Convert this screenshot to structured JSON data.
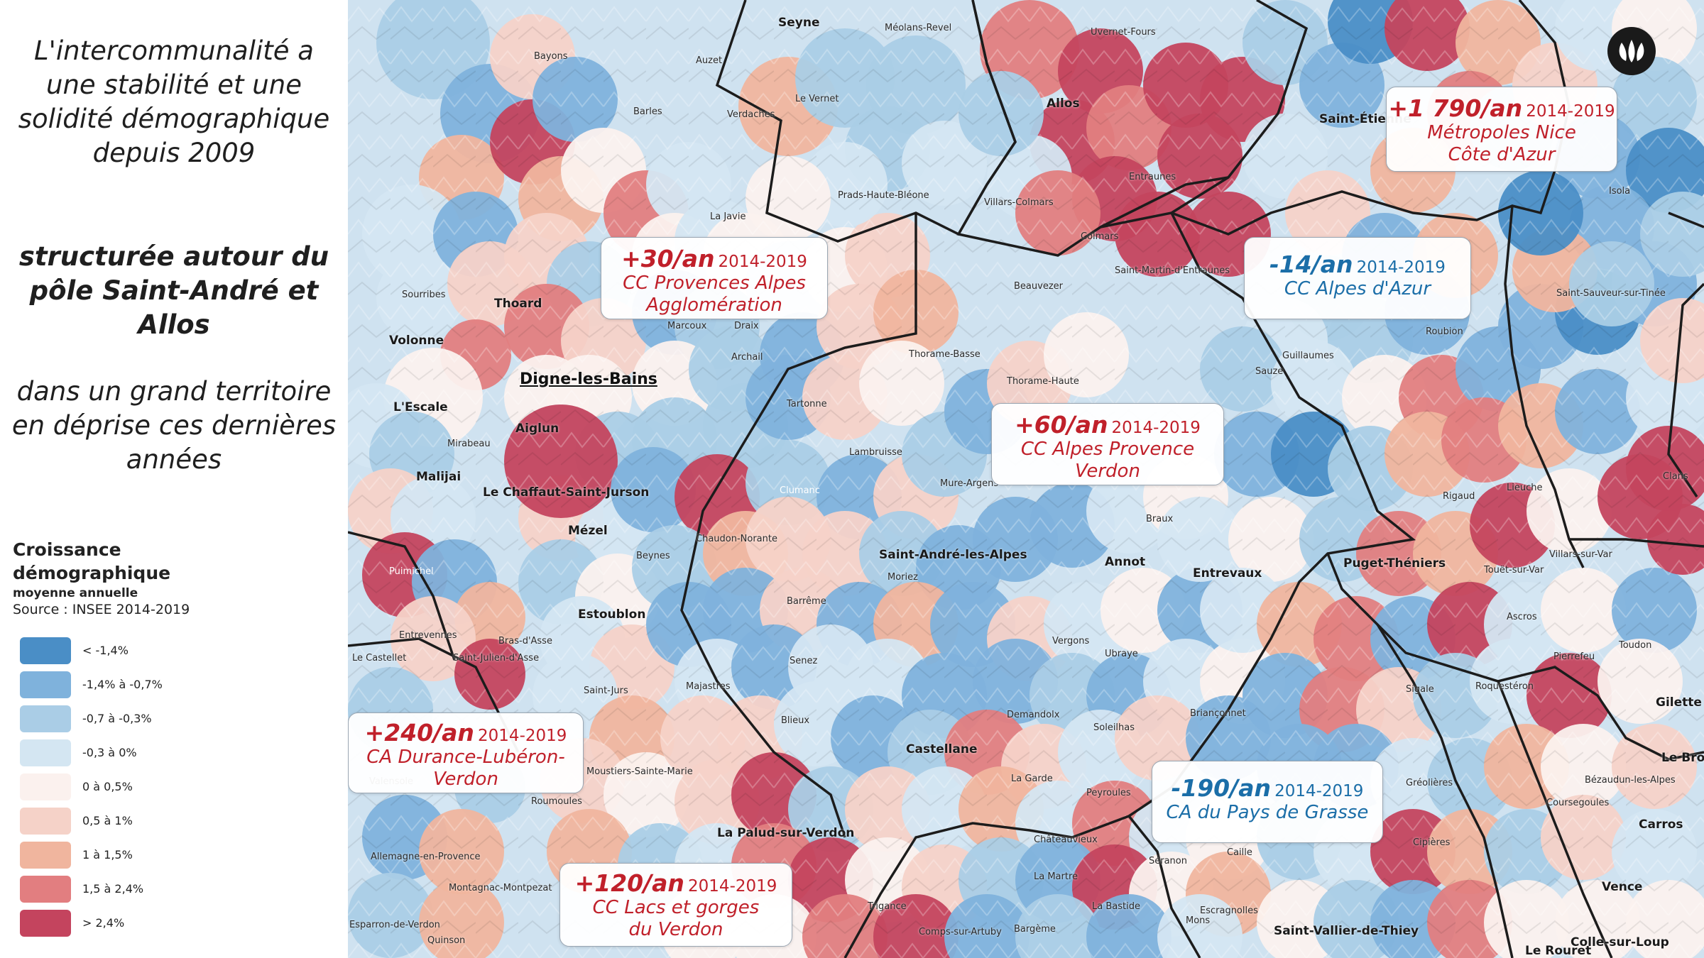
{
  "intro": {
    "line1": "L'intercommunalité a une stabilité et une solidité démographique depuis 2009",
    "line2": "structurée autour du pôle Saint-André et Allos",
    "line3": "dans un grand territoire en déprise ces dernières années"
  },
  "legend": {
    "title": "Croissance démographique",
    "subtitle": "moyenne annuelle",
    "source": "Source : INSEE 2014-2019",
    "items": [
      {
        "label": "< -1,4%",
        "color": "#4a8ec6"
      },
      {
        "label": "-1,4% à -0,7%",
        "color": "#7fb2dc"
      },
      {
        "label": "-0,7 à -0,3%",
        "color": "#aacde6"
      },
      {
        "label": "-0,3 à 0%",
        "color": "#d4e6f2"
      },
      {
        "label": "0 à 0,5%",
        "color": "#fbf1ee"
      },
      {
        "label": "0,5 à 1%",
        "color": "#f5d2c8"
      },
      {
        "label": "1 à 1,5%",
        "color": "#f0b59e"
      },
      {
        "label": "1,5 à 2,4%",
        "color": "#e27e80"
      },
      {
        "label": "> 2,4%",
        "color": "#c4445e"
      }
    ]
  },
  "callouts": [
    {
      "value": "+30/an",
      "years": "2014-2019",
      "name": "CC Provences Alpes Agglomération",
      "tone": "red"
    },
    {
      "value": "+60/an",
      "years": "2014-2019",
      "name": "CC Alpes Provence Verdon",
      "tone": "red"
    },
    {
      "value": "-14/an",
      "years": "2014-2019",
      "name": "CC Alpes d'Azur",
      "tone": "blue"
    },
    {
      "value": "+1 790/an",
      "years": "2014-2019",
      "name": "Métropoles Nice Côte d'Azur",
      "tone": "red"
    },
    {
      "value": "+240/an",
      "years": "2014-2019",
      "name": "CA Durance-Lubéron-Verdon",
      "tone": "red"
    },
    {
      "value": "+120/an",
      "years": "2014-2019",
      "name": "CC Lacs et gorges du Verdon",
      "tone": "red"
    },
    {
      "value": "-190/an",
      "years": "2014-2019",
      "name": "CA du Pays de Grasse",
      "tone": "blue"
    }
  ],
  "places": {
    "digne": "Digne-les-Bains",
    "seyne": "Seyne",
    "allos": "Allos",
    "colmars": "Colmars",
    "thorame_basse": "Thorame-Basse",
    "thorame_haute": "Thorame-Haute",
    "beauvezer": "Beauvezer",
    "villars_colmars": "Villars-Colmars",
    "la_javie": "La Javie",
    "thoard": "Thoard",
    "volonne": "Volonne",
    "lescale": "L'Escale",
    "aiglun": "Aiglun",
    "malijai": "Malijai",
    "chaffaut": "Le Chaffaut-Saint-Jurson",
    "mezel": "Mézel",
    "estoublon": "Estoublon",
    "saint_andre": "Saint-André-les-Alpes",
    "annot": "Annot",
    "entrevaux": "Entrevaux",
    "puget": "Puget-Théniers",
    "castellane": "Castellane",
    "guillaumes": "Guillaumes",
    "isola": "Isola",
    "clans": "Clans",
    "gilette": "Gilette",
    "carros": "Carros",
    "vence": "Vence",
    "lebroc": "Le Broc",
    "villars_var": "Villars-sur-Var",
    "touet": "Touët-sur-Var",
    "greolieres": "Gréolières",
    "coursegoules": "Coursegoules",
    "cipieres": "Cipières",
    "saint_vallier": "Saint-Vallier-de-Thiey",
    "le_rouret": "Le Rouret",
    "colle": "Colle-sur-Loup",
    "seranon": "Séranon",
    "caille": "Caille",
    "mons": "Mons",
    "roumoules": "Roumoules",
    "moustiers": "Moustiers-Sainte-Marie",
    "allemagne": "Allemagne-en-Provence",
    "montagnac": "Montagnac-Montpezat",
    "esparron": "Esparron-de-Verdon",
    "quinson": "Quinson",
    "bras_asse": "Bras-d'Asse",
    "saint_julien_asse": "Saint-Julien-d'Asse",
    "le_castellet": "Le Castellet",
    "entrevennes": "Entrevennes",
    "puimichel": "Puimichel",
    "mirabeau": "Mirabeau",
    "uvernet": "Uvernet-Fours",
    "meolans": "Méolans-Revel",
    "mure": "Mure-Argens",
    "saint_martin": "Saint-Martin-d'Entraunes",
    "saint_etienne": "Saint-Étienne",
    "barreme": "Barrême",
    "chaudon": "Chaudon-Norante",
    "beynes": "Beynes",
    "clumanc": "Clumanc",
    "moriez": "Moriez",
    "senez": "Senez",
    "braux": "Braux",
    "sigale": "Sigale",
    "roquesteron": "Roquestéron",
    "pierrefeu": "Pierrefeu",
    "toudon": "Toudon",
    "ascros": "Ascros",
    "bezaudun": "Bézaudun-les-Alpes",
    "sauze": "Sauze",
    "roubion": "Roubion",
    "saint_sauveur": "Saint-Sauveur-sur-Tinée",
    "lieuche": "Lieuche",
    "rigaud": "Rigaud",
    "peyroules": "Peyroules",
    "la_garde": "La Garde",
    "soleilhas": "Soleilhas",
    "demandolx": "Demandolx",
    "briancconnet": "Briançonnet",
    "la_bastide": "La Bastide",
    "la_martre": "La Martre",
    "chateauvieux": "Châteauvieux",
    "bargeme": "Bargème",
    "comps": "Comps-sur-Artuby",
    "trigance": "Trigance",
    "escragnolles": "Escragnolles",
    "bayons": "Bayons",
    "auzet": "Auzet",
    "barles": "Barles",
    "verdaches": "Verdaches",
    "le_vernet": "Le Vernet",
    "prads": "Prads-Haute-Bléone",
    "entraunes": "Entraunes",
    "sourribes": "Sourribes",
    "marcoux": "Marcoux",
    "draix": "Draix",
    "archail": "Archail",
    "la_robine": "Tartonne",
    "lambruisse": "Lambruisse",
    "vergons": "Vergons",
    "ubraye": "Ubraye",
    "blieux": "Blieux",
    "majastres": "Majastres",
    "saint_jurs": "Saint-Jurs",
    "la_palud": "La Palud-sur-Verdon",
    "valensole": "Valensole"
  }
}
